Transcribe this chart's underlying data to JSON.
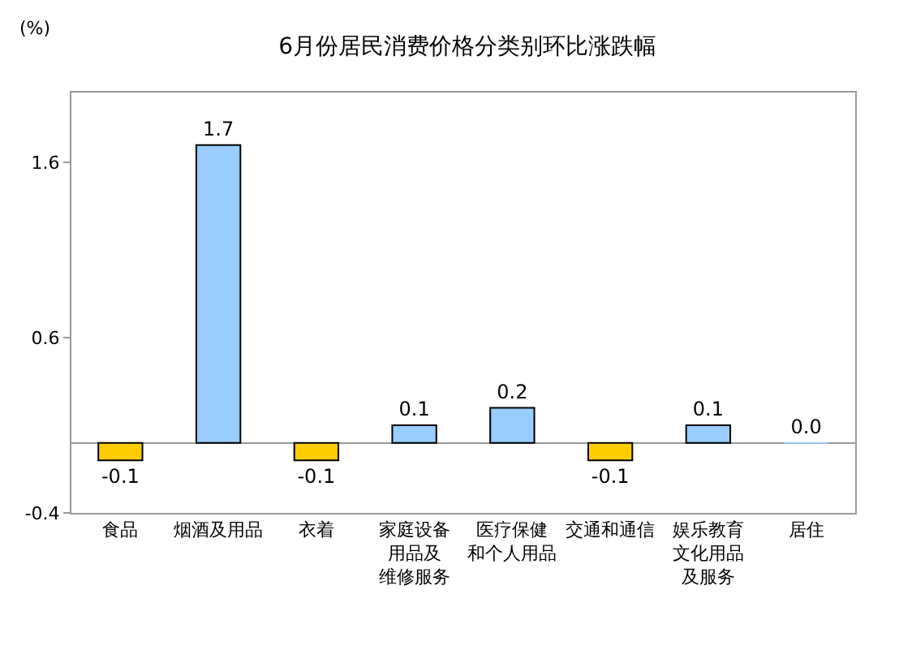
{
  "chart_data": {
    "type": "bar",
    "title": "6月份居民消费价格分类别环比涨跌幅",
    "ylabel": "(%)",
    "categories": [
      "食品",
      "烟酒及用品",
      "衣着",
      "家庭设备用品及维修服务",
      "医疗保健和个人用品",
      "交通和通信",
      "娱乐教育文化用品及服务",
      "居住"
    ],
    "values": [
      -0.1,
      1.7,
      -0.1,
      0.1,
      0.2,
      -0.1,
      0.1,
      0.0
    ],
    "value_labels": [
      "-0.1",
      "1.7",
      "-0.1",
      "0.1",
      "0.2",
      "-0.1",
      "0.1",
      "0.0"
    ],
    "colors": [
      "#ffcc00",
      "#99ccff",
      "#ffcc00",
      "#99ccff",
      "#99ccff",
      "#ffcc00",
      "#99ccff",
      "#99ccff"
    ],
    "ylim": [
      -0.4,
      2.0
    ],
    "yticks": [
      -0.4,
      0.6,
      1.6
    ],
    "legend": false
  }
}
